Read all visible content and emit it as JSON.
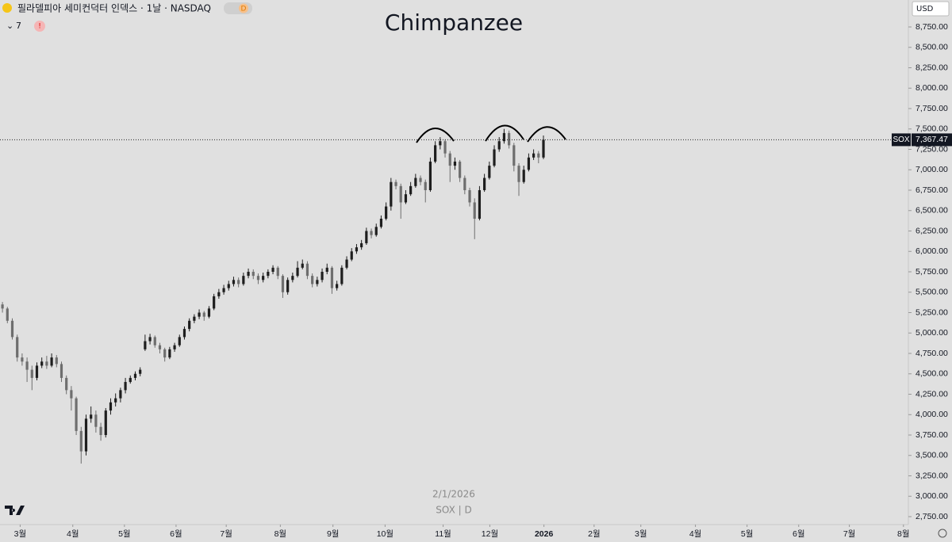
{
  "chart_data": {
    "type": "candlestick",
    "header": "필라델피아 세미컨덕터 인덱스 · 1날 · NASDAQ",
    "badge": "D",
    "indicator_count": "7",
    "alert": "!",
    "title": "Chimpanzee",
    "currency": "USD",
    "symbol": "SOX",
    "price_label": "7,367.47",
    "watermark_date": "2/1/2026",
    "watermark_symbol": "SOX | D",
    "up_color": "#1e1e1e",
    "down_color": "#6e6e6e",
    "xlim": [
      -0.5,
      184.2
    ],
    "ylim": [
      2653,
      9080
    ],
    "xticks": [
      {
        "value": 3.6,
        "label": "3월"
      },
      {
        "value": 14.3,
        "label": "4월"
      },
      {
        "value": 24.8,
        "label": "5월"
      },
      {
        "value": 35.3,
        "label": "6월"
      },
      {
        "value": 45.5,
        "label": "7월"
      },
      {
        "value": 56.5,
        "label": "8월"
      },
      {
        "value": 67.2,
        "label": "9월"
      },
      {
        "value": 77.8,
        "label": "10월"
      },
      {
        "value": 89.6,
        "label": "11월"
      },
      {
        "value": 99.1,
        "label": "12월"
      },
      {
        "value": 110.1,
        "label": "2026"
      },
      {
        "value": 120.3,
        "label": "2월"
      },
      {
        "value": 129.8,
        "label": "3월"
      },
      {
        "value": 140.9,
        "label": "4월"
      },
      {
        "value": 151.4,
        "label": "5월"
      },
      {
        "value": 161.9,
        "label": "6월"
      },
      {
        "value": 172.2,
        "label": "7월"
      },
      {
        "value": 183.2,
        "label": "8월"
      }
    ],
    "yticks": [
      {
        "value": 2750,
        "label": "2,750.00"
      },
      {
        "value": 3000,
        "label": "3,000.00"
      },
      {
        "value": 3250,
        "label": "3,250.00"
      },
      {
        "value": 3500,
        "label": "3,500.00"
      },
      {
        "value": 3750,
        "label": "3,750.00"
      },
      {
        "value": 4000,
        "label": "4,000.00"
      },
      {
        "value": 4250,
        "label": "4,250.00"
      },
      {
        "value": 4500,
        "label": "4,500.00"
      },
      {
        "value": 4750,
        "label": "4,750.00"
      },
      {
        "value": 5000,
        "label": "5,000.00"
      },
      {
        "value": 5250,
        "label": "5,250.00"
      },
      {
        "value": 5500,
        "label": "5,500.00"
      },
      {
        "value": 5750,
        "label": "5,750.00"
      },
      {
        "value": 6000,
        "label": "6,000.00"
      },
      {
        "value": 6250,
        "label": "6,250.00"
      },
      {
        "value": 6500,
        "label": "6,500.00"
      },
      {
        "value": 6750,
        "label": "6,750.00"
      },
      {
        "value": 7000,
        "label": "7,000.00"
      },
      {
        "value": 7250,
        "label": "7,250.00"
      },
      {
        "value": 7500,
        "label": "7,500.00"
      },
      {
        "value": 7750,
        "label": "7,750.00"
      },
      {
        "value": 8000,
        "label": "8,000.00"
      },
      {
        "value": 8250,
        "label": "8,250.00"
      },
      {
        "value": 8500,
        "label": "8,500.00"
      },
      {
        "value": 8750,
        "label": "8,750.00"
      }
    ],
    "ohlc": [
      [
        5350,
        5380,
        5250,
        5300
      ],
      [
        5300,
        5320,
        5120,
        5150
      ],
      [
        5150,
        5180,
        4920,
        4950
      ],
      [
        4950,
        4980,
        4650,
        4700
      ],
      [
        4700,
        4750,
        4600,
        4650
      ],
      [
        4650,
        4700,
        4400,
        4550
      ],
      [
        4550,
        4600,
        4300,
        4450
      ],
      [
        4450,
        4640,
        4420,
        4600
      ],
      [
        4600,
        4700,
        4570,
        4650
      ],
      [
        4650,
        4720,
        4560,
        4600
      ],
      [
        4600,
        4750,
        4580,
        4700
      ],
      [
        4700,
        4730,
        4580,
        4620
      ],
      [
        4620,
        4650,
        4400,
        4450
      ],
      [
        4450,
        4480,
        4250,
        4300
      ],
      [
        4300,
        4350,
        4050,
        4200
      ],
      [
        4200,
        4220,
        3750,
        3800
      ],
      [
        3800,
        3850,
        3400,
        3550
      ],
      [
        3550,
        4000,
        3500,
        3950
      ],
      [
        3950,
        4100,
        3900,
        4000
      ],
      [
        4000,
        4050,
        3780,
        3850
      ],
      [
        3850,
        3900,
        3680,
        3750
      ],
      [
        3750,
        4080,
        3720,
        4050
      ],
      [
        4050,
        4200,
        4000,
        4150
      ],
      [
        4150,
        4260,
        4100,
        4200
      ],
      [
        4200,
        4330,
        4150,
        4300
      ],
      [
        4300,
        4450,
        4260,
        4400
      ],
      [
        4400,
        4480,
        4380,
        4450
      ],
      [
        4450,
        4530,
        4420,
        4500
      ],
      [
        4500,
        4580,
        4470,
        4550
      ],
      [
        4800,
        4980,
        4780,
        4900
      ],
      [
        4900,
        4990,
        4860,
        4950
      ],
      [
        4950,
        4970,
        4820,
        4850
      ],
      [
        4850,
        4880,
        4750,
        4800
      ],
      [
        4800,
        4820,
        4650,
        4700
      ],
      [
        4700,
        4830,
        4680,
        4800
      ],
      [
        4800,
        4880,
        4770,
        4850
      ],
      [
        4850,
        4980,
        4830,
        4950
      ],
      [
        4950,
        5080,
        4920,
        5050
      ],
      [
        5050,
        5180,
        5020,
        5150
      ],
      [
        5150,
        5230,
        5120,
        5200
      ],
      [
        5200,
        5290,
        5170,
        5250
      ],
      [
        5250,
        5270,
        5150,
        5200
      ],
      [
        5200,
        5330,
        5180,
        5300
      ],
      [
        5300,
        5480,
        5280,
        5450
      ],
      [
        5450,
        5540,
        5420,
        5500
      ],
      [
        5500,
        5590,
        5470,
        5550
      ],
      [
        5550,
        5640,
        5520,
        5600
      ],
      [
        5600,
        5690,
        5570,
        5650
      ],
      [
        5650,
        5680,
        5560,
        5600
      ],
      [
        5600,
        5740,
        5580,
        5700
      ],
      [
        5700,
        5790,
        5670,
        5750
      ],
      [
        5750,
        5780,
        5660,
        5700
      ],
      [
        5700,
        5730,
        5600,
        5650
      ],
      [
        5650,
        5740,
        5620,
        5700
      ],
      [
        5700,
        5780,
        5670,
        5750
      ],
      [
        5750,
        5830,
        5720,
        5800
      ],
      [
        5800,
        5820,
        5660,
        5700
      ],
      [
        5700,
        5720,
        5430,
        5500
      ],
      [
        5500,
        5680,
        5470,
        5650
      ],
      [
        5650,
        5740,
        5620,
        5700
      ],
      [
        5700,
        5880,
        5680,
        5800
      ],
      [
        5800,
        5900,
        5780,
        5850
      ],
      [
        5850,
        5880,
        5660,
        5700
      ],
      [
        5700,
        5730,
        5560,
        5600
      ],
      [
        5600,
        5690,
        5570,
        5650
      ],
      [
        5650,
        5790,
        5620,
        5750
      ],
      [
        5750,
        5850,
        5720,
        5800
      ],
      [
        5800,
        5820,
        5480,
        5550
      ],
      [
        5550,
        5640,
        5520,
        5600
      ],
      [
        5600,
        5830,
        5580,
        5800
      ],
      [
        5800,
        5940,
        5780,
        5900
      ],
      [
        5900,
        6040,
        5880,
        6000
      ],
      [
        6000,
        6090,
        5970,
        6050
      ],
      [
        6050,
        6140,
        6020,
        6100
      ],
      [
        6100,
        6290,
        6080,
        6250
      ],
      [
        6250,
        6280,
        6160,
        6200
      ],
      [
        6200,
        6340,
        6180,
        6300
      ],
      [
        6300,
        6440,
        6280,
        6400
      ],
      [
        6400,
        6600,
        6380,
        6550
      ],
      [
        6550,
        6900,
        6500,
        6850
      ],
      [
        6850,
        6880,
        6760,
        6800
      ],
      [
        6800,
        6830,
        6400,
        6600
      ],
      [
        6600,
        6750,
        6580,
        6700
      ],
      [
        6700,
        6850,
        6680,
        6800
      ],
      [
        6800,
        6950,
        6780,
        6900
      ],
      [
        6900,
        6930,
        6810,
        6850
      ],
      [
        6850,
        6880,
        6600,
        6750
      ],
      [
        6750,
        7150,
        6730,
        7100
      ],
      [
        7100,
        7350,
        7080,
        7300
      ],
      [
        7300,
        7400,
        7250,
        7350
      ],
      [
        7350,
        7370,
        7150,
        7200
      ],
      [
        7200,
        7230,
        6850,
        7050
      ],
      [
        7050,
        7150,
        7000,
        7100
      ],
      [
        7100,
        7120,
        6850,
        6900
      ],
      [
        6900,
        6930,
        6700,
        6750
      ],
      [
        6750,
        6780,
        6550,
        6600
      ],
      [
        6600,
        6650,
        6150,
        6400
      ],
      [
        6400,
        6800,
        6380,
        6750
      ],
      [
        6750,
        6950,
        6730,
        6900
      ],
      [
        6900,
        7100,
        6880,
        7050
      ],
      [
        7050,
        7300,
        7030,
        7250
      ],
      [
        7250,
        7400,
        7220,
        7350
      ],
      [
        7350,
        7500,
        7320,
        7450
      ],
      [
        7450,
        7480,
        7260,
        7300
      ],
      [
        7300,
        7330,
        6980,
        7050
      ],
      [
        7050,
        7080,
        6680,
        6850
      ],
      [
        6850,
        7050,
        6830,
        7000
      ],
      [
        7000,
        7200,
        6980,
        7150
      ],
      [
        7150,
        7250,
        7120,
        7200
      ],
      [
        7200,
        7230,
        7080,
        7150
      ],
      [
        7150,
        7420,
        7130,
        7367.47
      ]
    ]
  }
}
